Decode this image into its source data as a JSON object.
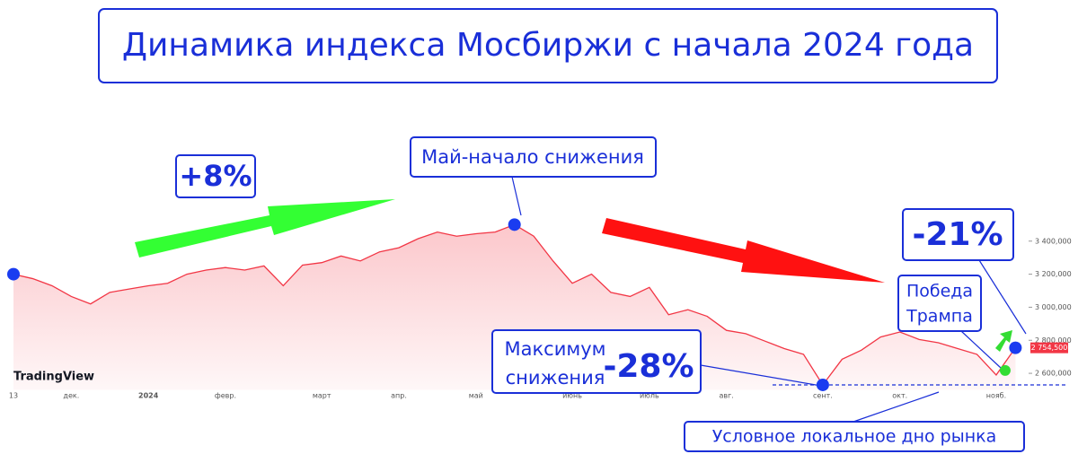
{
  "chart_data": {
    "type": "line",
    "title": "Динамика индекса Мосбиржи с начала 2024 года",
    "watermark": "TradingView",
    "categories": [
      "13",
      null,
      null,
      "дек.",
      null,
      null,
      null,
      "2024",
      null,
      null,
      null,
      "февр.",
      null,
      null,
      null,
      null,
      "март",
      null,
      null,
      null,
      "апр.",
      null,
      null,
      null,
      "май",
      null,
      null,
      null,
      null,
      "июнь",
      null,
      null,
      null,
      "июль",
      null,
      null,
      null,
      "авг.",
      null,
      null,
      null,
      null,
      "сент.",
      null,
      null,
      null,
      "окт.",
      null,
      null,
      null,
      null,
      "нояб.",
      null
    ],
    "series": [
      {
        "color": "#f23645",
        "values": [
          3200,
          3173,
          3130,
          3065,
          3020,
          3090,
          3110,
          3130,
          3145,
          3200,
          3225,
          3240,
          3225,
          3250,
          3130,
          3255,
          3270,
          3310,
          3280,
          3335,
          3360,
          3415,
          3455,
          3430,
          3445,
          3455,
          3500,
          3430,
          3280,
          3145,
          3200,
          3090,
          3065,
          3120,
          2955,
          2985,
          2945,
          2860,
          2840,
          2795,
          2750,
          2715,
          2530,
          2685,
          2740,
          2820,
          2850,
          2805,
          2785,
          2750,
          2715,
          2590,
          2754.5
        ],
        "value_labels": [
          null,
          null,
          null,
          null,
          null,
          null,
          null,
          null,
          null,
          null,
          null,
          null,
          null,
          null,
          null,
          null,
          null,
          null,
          null,
          null,
          null,
          null,
          null,
          null,
          null,
          null,
          null,
          null,
          null,
          null,
          null,
          null,
          null,
          null,
          null,
          null,
          null,
          null,
          null,
          null,
          null,
          null,
          null,
          null,
          null,
          null,
          null,
          null,
          null,
          null,
          null,
          null,
          "2 754,500"
        ]
      }
    ],
    "ylim": [
      2500,
      3700
    ],
    "yticks": [
      {
        "value": 2600,
        "label": "2 600,000"
      },
      {
        "value": 2800,
        "label": "2 800,000"
      },
      {
        "value": 3000,
        "label": "3 000,000"
      },
      {
        "value": 3200,
        "label": "3 200,000"
      },
      {
        "value": 3400,
        "label": "3 400,000"
      }
    ],
    "support_level": 2530,
    "annotations": {
      "growth": "+8%",
      "may": "Май-начало снижения",
      "rebound": "-21%",
      "trump": [
        "Победа",
        "Трампа"
      ],
      "max_drop": [
        "Максимум",
        "снижения"
      ],
      "max_drop_value": "-28%",
      "bottom": "Условное локальное дно рынка"
    }
  }
}
